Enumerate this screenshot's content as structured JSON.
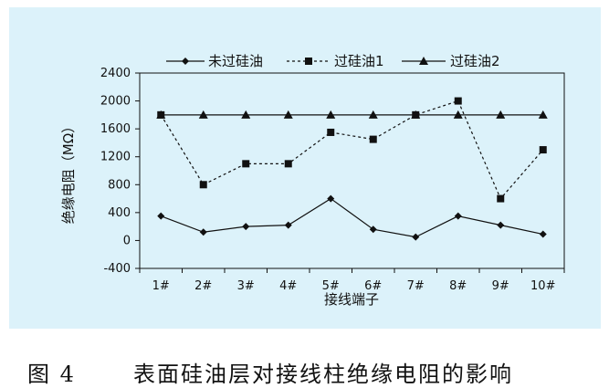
{
  "chart_data": {
    "type": "line",
    "categories": [
      "1#",
      "2#",
      "3#",
      "4#",
      "5#",
      "6#",
      "7#",
      "8#",
      "9#",
      "10#"
    ],
    "series": [
      {
        "name": "未过硅油",
        "values": [
          350,
          120,
          200,
          220,
          600,
          160,
          50,
          350,
          220,
          90
        ],
        "marker": "diamond",
        "line": "solid",
        "color": "#111111"
      },
      {
        "name": "过硅油1",
        "values": [
          1800,
          800,
          1100,
          1100,
          1550,
          1450,
          1800,
          2000,
          600,
          1300
        ],
        "marker": "square",
        "line": "dashed",
        "color": "#111111"
      },
      {
        "name": "过硅油2",
        "values": [
          1800,
          1800,
          1800,
          1800,
          1800,
          1800,
          1800,
          1800,
          1800,
          1800
        ],
        "marker": "triangle",
        "line": "solid",
        "color": "#111111"
      }
    ],
    "xlabel": "接线端子",
    "ylabel": "绝缘电阻（MΩ）",
    "ylim": [
      -400,
      2400
    ],
    "yticks": [
      "2400",
      "2000",
      "1600",
      "1200",
      "800",
      "400",
      "0",
      "-400"
    ],
    "ytick_values": [
      2400,
      2000,
      1600,
      1200,
      800,
      400,
      0,
      -400
    ],
    "legend_position": "top",
    "grid": false
  },
  "caption": {
    "figure_number": "图 4",
    "text": "表面硅油层对接线柱绝缘电阻的影响"
  },
  "colors": {
    "panel_background": "#dcf2fa",
    "plot_background": "#dcf2fa",
    "ink": "#111111"
  }
}
